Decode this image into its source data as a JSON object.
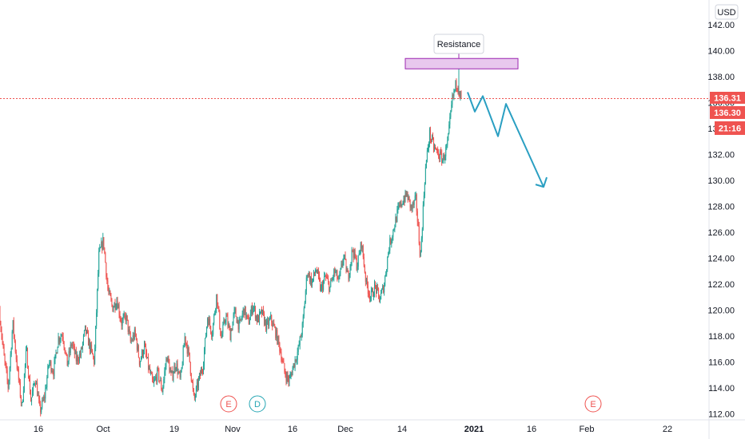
{
  "chart_data": {
    "type": "candlestick",
    "currency": "USD",
    "ylim": [
      112,
      143
    ],
    "y_ticks": [
      "142.00",
      "140.00",
      "138.00",
      "136.00",
      "134.00",
      "132.00",
      "130.00",
      "128.00",
      "126.00",
      "124.00",
      "122.00",
      "120.00",
      "118.00",
      "116.00",
      "114.00",
      "112.00"
    ],
    "x_ticks": [
      "16",
      "Oct",
      "19",
      "Nov",
      "16",
      "Dec",
      "14",
      "2021",
      "16",
      "Feb",
      "22"
    ],
    "price_labels": {
      "last": "136.31",
      "prev": "136.30",
      "countdown": "21:16"
    },
    "last_price": 136.31,
    "annotation": {
      "text": "Resistance",
      "zone_low": 138.6,
      "zone_high": 139.4
    },
    "projection_path": [
      136.8,
      135.3,
      136.5,
      133.4,
      135.9,
      129.5
    ],
    "event_markers": [
      "E",
      "D",
      "E"
    ],
    "series_path": [
      120.0,
      116.5,
      114.0,
      119.0,
      115.5,
      112.5,
      117.0,
      113.0,
      114.8,
      112.2,
      113.3,
      116.0,
      115.3,
      117.8,
      118.2,
      115.8,
      117.5,
      116.2,
      116.6,
      118.5,
      117.2,
      116.0,
      124.2,
      125.4,
      121.5,
      120.2,
      120.8,
      119.0,
      119.5,
      117.5,
      118.2,
      116.0,
      117.2,
      115.5,
      114.2,
      115.2,
      113.8,
      116.5,
      114.8,
      115.9,
      114.5,
      118.0,
      116.2,
      113.0,
      114.5,
      115.8,
      119.5,
      118.2,
      121.2,
      117.8,
      119.6,
      118.1,
      119.9,
      118.7,
      120.1,
      119.0,
      120.4,
      119.2,
      119.8,
      118.7,
      119.3,
      118.3,
      117.0,
      115.2,
      114.5,
      115.8,
      116.9,
      118.8,
      123.0,
      122.1,
      123.2,
      121.5,
      122.6,
      121.7,
      123.0,
      122.2,
      124.2,
      122.5,
      124.7,
      123.4,
      125.2,
      122.1,
      121.0,
      121.8,
      120.8,
      122.0,
      124.8,
      126.2,
      127.6,
      128.4,
      128.9,
      127.8,
      128.5,
      124.0,
      130.5,
      133.6,
      132.5,
      132.0,
      131.6,
      132.8,
      136.2,
      137.6,
      136.3
    ]
  }
}
